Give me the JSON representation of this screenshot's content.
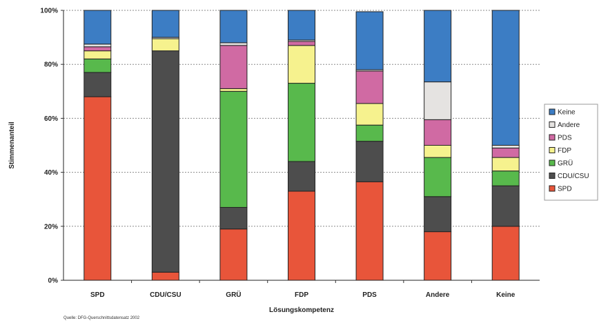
{
  "chart_data": {
    "type": "bar",
    "stacked": true,
    "percent": true,
    "categories": [
      "SPD",
      "CDU/CSU",
      "GRÜ",
      "FDP",
      "PDS",
      "Andere",
      "Keine"
    ],
    "series": [
      {
        "name": "SPD",
        "color": "#e8553a",
        "values": [
          68,
          3,
          19,
          33,
          36.5,
          18,
          20
        ]
      },
      {
        "name": "CDU/CSU",
        "color": "#4d4d4d",
        "values": [
          9,
          82,
          8,
          11,
          15,
          13,
          15
        ]
      },
      {
        "name": "GRÜ",
        "color": "#58b94c",
        "values": [
          5,
          0,
          43,
          29,
          6,
          14.5,
          5.5
        ]
      },
      {
        "name": "FDP",
        "color": "#f6f28e",
        "values": [
          3,
          4.5,
          1,
          14,
          8,
          4.5,
          5
        ]
      },
      {
        "name": "PDS",
        "color": "#d06aa3",
        "values": [
          1.5,
          0,
          16,
          1.5,
          12,
          9.5,
          3.5
        ]
      },
      {
        "name": "Andere",
        "color": "#e5e3e1",
        "values": [
          1,
          0.5,
          1,
          0.5,
          0.5,
          14,
          1
        ]
      },
      {
        "name": "Keine",
        "color": "#3c7dc4",
        "values": [
          12.5,
          10,
          12,
          11,
          21.5,
          26.5,
          50
        ]
      }
    ],
    "xlabel": "Lösungskompetenz",
    "ylabel": "Stimmenanteil",
    "ylim": [
      0,
      100
    ],
    "yticks": [
      "0%",
      "20%",
      "40%",
      "60%",
      "80%",
      "100%"
    ],
    "legend_order": [
      "Keine",
      "Andere",
      "PDS",
      "FDP",
      "GRÜ",
      "CDU/CSU",
      "SPD"
    ],
    "legend_position": "right",
    "grid": true,
    "source_note": "Quelle: DFG-Querschnittsdatensatz 2002"
  }
}
